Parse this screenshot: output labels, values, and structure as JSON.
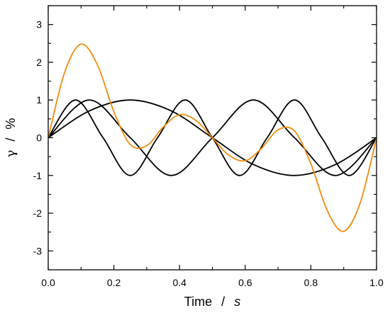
{
  "chart_data": {
    "type": "line",
    "title": "",
    "xlabel": {
      "name": "Time",
      "separator": "/",
      "unit": "s"
    },
    "ylabel": {
      "name": "γ",
      "separator": "/",
      "unit": "%"
    },
    "xlim": [
      0.0,
      1.0
    ],
    "ylim": [
      -3.5,
      3.5
    ],
    "xticks": [
      0.0,
      0.2,
      0.4,
      0.6,
      0.8,
      1.0
    ],
    "xtick_labels": [
      "0.0",
      "0.2",
      "0.4",
      "0.6",
      "0.8",
      "1.0"
    ],
    "yticks": [
      -3,
      -2,
      -1,
      0,
      1,
      2,
      3
    ],
    "ytick_labels": [
      "-3",
      "-2",
      "-1",
      "0",
      "1",
      "2",
      "3"
    ],
    "grid": false,
    "legend": "none",
    "series": [
      {
        "color": "#000000",
        "x": [
          0.0,
          0.125,
          0.25,
          0.375,
          0.5,
          0.625,
          0.75,
          0.875,
          1.0
        ],
        "y": [
          0.0,
          0.71,
          1.0,
          0.71,
          0.0,
          -0.71,
          -1.0,
          -0.71,
          0.0
        ]
      },
      {
        "color": "#000000",
        "x": [
          0.0,
          0.125,
          0.25,
          0.375,
          0.5,
          0.625,
          0.75,
          0.875,
          1.0
        ],
        "y": [
          0.0,
          1.0,
          0.0,
          -1.0,
          0.0,
          1.0,
          0.0,
          -1.0,
          0.0
        ]
      },
      {
        "color": "#000000",
        "x": [
          0.0,
          0.083,
          0.167,
          0.25,
          0.333,
          0.417,
          0.5,
          0.583,
          0.667,
          0.75,
          0.833,
          0.917,
          1.0
        ],
        "y": [
          0.0,
          1.0,
          0.0,
          -1.0,
          0.0,
          1.0,
          0.0,
          -1.0,
          0.0,
          1.0,
          0.0,
          -1.0,
          0.0
        ]
      },
      {
        "color": "#F28C0F",
        "x": [
          0.0,
          0.05,
          0.1,
          0.15,
          0.2,
          0.25,
          0.3,
          0.35,
          0.4,
          0.45,
          0.5,
          0.55,
          0.6,
          0.65,
          0.7,
          0.75,
          0.8,
          0.85,
          0.9,
          0.95,
          1.0
        ],
        "y": [
          0.0,
          1.73,
          2.48,
          1.93,
          0.69,
          -0.18,
          -0.21,
          0.28,
          0.61,
          0.46,
          0.0,
          -0.46,
          -0.61,
          -0.28,
          0.21,
          0.18,
          -0.69,
          -1.93,
          -2.48,
          -1.73,
          0.0
        ]
      }
    ]
  }
}
